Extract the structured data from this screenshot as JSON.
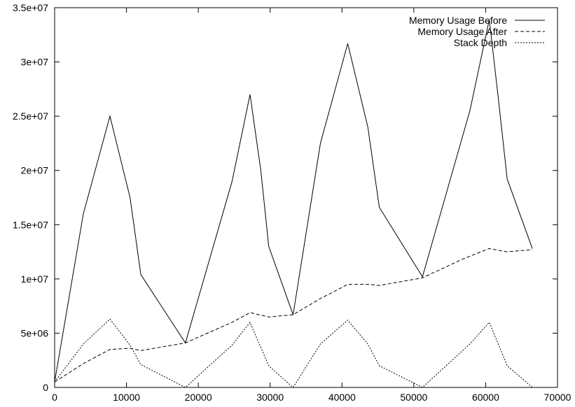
{
  "chart_data": {
    "type": "line",
    "title": "",
    "xlabel": "",
    "ylabel": "",
    "xlim": [
      0,
      70000
    ],
    "ylim": [
      0,
      35000000
    ],
    "x_ticks": [
      "0",
      "10000",
      "20000",
      "30000",
      "40000",
      "50000",
      "60000",
      "70000"
    ],
    "y_ticks": [
      "0",
      "5e+06",
      "1e+07",
      "1.5e+07",
      "2e+07",
      "2.5e+07",
      "3e+07",
      "3.5e+07"
    ],
    "x_tick_values": [
      0,
      10000,
      20000,
      30000,
      40000,
      50000,
      60000,
      70000
    ],
    "y_tick_values": [
      0,
      5000000,
      10000000,
      15000000,
      20000000,
      25000000,
      30000000,
      35000000
    ],
    "grid": false,
    "legend_position": "top-right",
    "series": [
      {
        "name": "Memory Usage Before",
        "style": "solid",
        "x": [
          0,
          4000,
          7700,
          10500,
          12000,
          18200,
          24700,
          27200,
          28700,
          29800,
          33200,
          37000,
          40800,
          43600,
          45200,
          51200,
          57800,
          60500,
          61700,
          63000,
          66500
        ],
        "y": [
          500000,
          16000000,
          25000000,
          17500000,
          10400000,
          4100000,
          19000000,
          27000000,
          20000000,
          13000000,
          6700000,
          22500000,
          31700000,
          24000000,
          16600000,
          10200000,
          25500000,
          33900000,
          27000000,
          19200000,
          12800000
        ]
      },
      {
        "name": "Memory Usage After",
        "style": "dashed",
        "x": [
          0,
          4000,
          7700,
          10500,
          12000,
          18200,
          24700,
          27200,
          29800,
          33200,
          37000,
          38800,
          40800,
          43600,
          45200,
          51200,
          56700,
          60500,
          63000,
          66500
        ],
        "y": [
          500000,
          2200000,
          3500000,
          3600000,
          3400000,
          4100000,
          6000000,
          6900000,
          6500000,
          6700000,
          8200000,
          8800000,
          9500000,
          9500000,
          9400000,
          10100000,
          11800000,
          12800000,
          12500000,
          12700000
        ]
      },
      {
        "name": "Stack Depth",
        "style": "dotted",
        "x": [
          0,
          4000,
          7700,
          10500,
          12000,
          18200,
          24700,
          27200,
          29800,
          33200,
          37000,
          40800,
          43600,
          45200,
          51200,
          57800,
          60500,
          63000,
          66500
        ],
        "y": [
          500000,
          4000000,
          6300000,
          3900000,
          2100000,
          0,
          3900000,
          6000000,
          2000000,
          0,
          4000000,
          6200000,
          4000000,
          2000000,
          0,
          4000000,
          6000000,
          2000000,
          0
        ]
      }
    ]
  }
}
